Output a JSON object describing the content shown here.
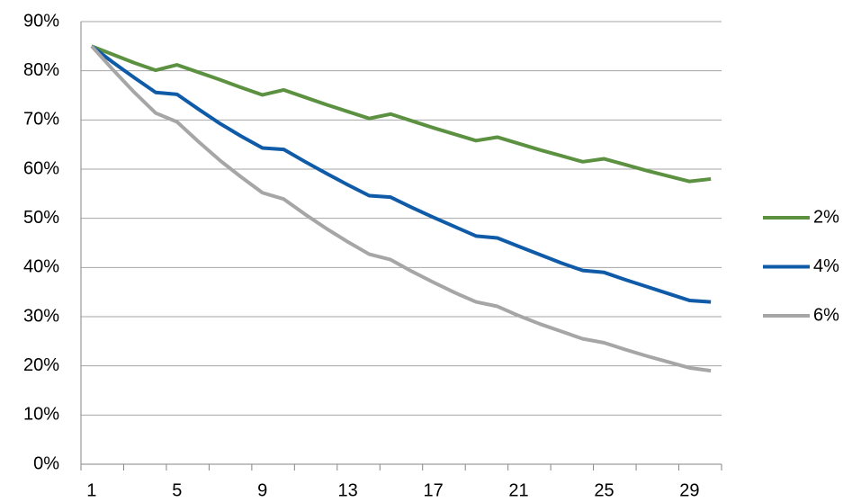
{
  "chart_data": {
    "type": "line",
    "categories": [
      1,
      null,
      null,
      null,
      5,
      null,
      null,
      null,
      9,
      null,
      null,
      null,
      13,
      null,
      null,
      null,
      17,
      null,
      null,
      null,
      21,
      null,
      null,
      null,
      25,
      null,
      null,
      null,
      29,
      null
    ],
    "series": [
      {
        "name": "2%",
        "color": "#5b9140",
        "values": [
          85,
          83.3,
          81.6,
          80.1,
          81.2,
          79.7,
          78.2,
          76.6,
          75.1,
          76.1,
          74.6,
          73.1,
          71.7,
          70.3,
          71.2,
          69.8,
          68.4,
          67.1,
          65.8,
          66.5,
          65.2,
          63.9,
          62.7,
          61.5,
          62.1,
          60.9,
          59.7,
          58.6,
          57.5,
          58
        ]
      },
      {
        "name": "4%",
        "color": "#0f5ba7",
        "values": [
          85,
          81.7,
          78.6,
          75.6,
          75.2,
          72.2,
          69.3,
          66.7,
          64.3,
          64.0,
          61.5,
          59.1,
          56.8,
          54.6,
          54.3,
          52.2,
          50.2,
          48.3,
          46.4,
          46.0,
          44.3,
          42.6,
          40.9,
          39.4,
          39.0,
          37.5,
          36.1,
          34.7,
          33.3,
          33.0
        ]
      },
      {
        "name": "6%",
        "color": "#a6a6a6",
        "values": [
          85,
          80.2,
          75.6,
          71.4,
          69.6,
          65.6,
          61.8,
          58.4,
          55.2,
          53.9,
          50.8,
          47.9,
          45.2,
          42.7,
          41.6,
          39.2,
          37.0,
          34.9,
          33.0,
          32.1,
          30.2,
          28.5,
          27.0,
          25.5,
          24.7,
          23.3,
          22.0,
          20.8,
          19.6,
          19.0
        ]
      }
    ],
    "ylim": [
      0,
      90
    ],
    "yticks": [
      {
        "value": 0,
        "label": "0%"
      },
      {
        "value": 10,
        "label": "10%"
      },
      {
        "value": 20,
        "label": "20%"
      },
      {
        "value": 30,
        "label": "30%"
      },
      {
        "value": 40,
        "label": "40%"
      },
      {
        "value": 50,
        "label": "50%"
      },
      {
        "value": 60,
        "label": "60%"
      },
      {
        "value": 70,
        "label": "70%"
      },
      {
        "value": 80,
        "label": "80%"
      },
      {
        "value": 90,
        "label": "90%"
      }
    ],
    "grid": true,
    "legend": "right"
  }
}
